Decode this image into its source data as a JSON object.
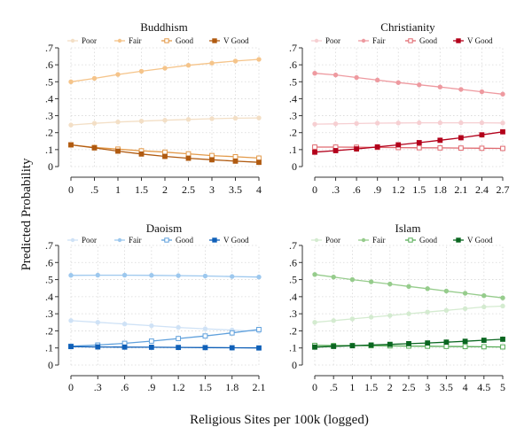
{
  "figure": {
    "ylabel": "Predicted Probability",
    "xlabel": "Religious Sites per 100k (logged)"
  },
  "legend_labels": [
    "Poor",
    "Fair",
    "Good",
    "V Good"
  ],
  "chart_data": [
    {
      "type": "line",
      "title": "Buddhism",
      "ylim": [
        0,
        0.7
      ],
      "yticks": [
        "0",
        ".1",
        ".2",
        ".3",
        ".4",
        ".5",
        ".6",
        ".7"
      ],
      "x": [
        0,
        0.5,
        1,
        1.5,
        2,
        2.5,
        3,
        3.5,
        4
      ],
      "xticks": [
        "0",
        ".5",
        "1",
        "1.5",
        "2",
        "2.5",
        "3",
        "3.5",
        "4"
      ],
      "grid": true,
      "legend": "top",
      "colors": [
        "#f3dfc6",
        "#f5c48a",
        "#e39a4a",
        "#b05a10"
      ],
      "series": [
        {
          "name": "Poor",
          "values": [
            0.245,
            0.255,
            0.263,
            0.268,
            0.273,
            0.278,
            0.282,
            0.285,
            0.287
          ]
        },
        {
          "name": "Fair",
          "values": [
            0.5,
            0.52,
            0.543,
            0.562,
            0.58,
            0.597,
            0.61,
            0.622,
            0.632
          ]
        },
        {
          "name": "Good",
          "values": [
            0.128,
            0.113,
            0.103,
            0.093,
            0.085,
            0.075,
            0.065,
            0.058,
            0.05
          ]
        },
        {
          "name": "V Good",
          "values": [
            0.128,
            0.11,
            0.091,
            0.074,
            0.06,
            0.049,
            0.04,
            0.032,
            0.025
          ]
        }
      ]
    },
    {
      "type": "line",
      "title": "Christianity",
      "ylim": [
        0,
        0.7
      ],
      "yticks": [
        "0",
        ".1",
        ".2",
        ".3",
        ".4",
        ".5",
        ".6",
        ".7"
      ],
      "x": [
        0,
        0.3,
        0.6,
        0.9,
        1.2,
        1.5,
        1.8,
        2.1,
        2.4,
        2.7
      ],
      "xticks": [
        "0",
        ".3",
        ".6",
        ".9",
        "1.2",
        "1.5",
        "1.8",
        "2.1",
        "2.4",
        "2.7"
      ],
      "grid": true,
      "legend": "top",
      "colors": [
        "#f6cfd2",
        "#ee9aa0",
        "#e06a70",
        "#b3001b"
      ],
      "series": [
        {
          "name": "Poor",
          "values": [
            0.25,
            0.252,
            0.254,
            0.256,
            0.257,
            0.258,
            0.258,
            0.258,
            0.258,
            0.257
          ]
        },
        {
          "name": "Fair",
          "values": [
            0.55,
            0.54,
            0.525,
            0.51,
            0.495,
            0.482,
            0.469,
            0.455,
            0.441,
            0.427
          ]
        },
        {
          "name": "Good",
          "values": [
            0.115,
            0.115,
            0.114,
            0.113,
            0.112,
            0.111,
            0.11,
            0.109,
            0.108,
            0.107
          ]
        },
        {
          "name": "V Good",
          "values": [
            0.085,
            0.094,
            0.104,
            0.116,
            0.128,
            0.141,
            0.155,
            0.17,
            0.187,
            0.205
          ]
        }
      ]
    },
    {
      "type": "line",
      "title": "Daoism",
      "ylim": [
        0,
        0.7
      ],
      "yticks": [
        "0",
        ".1",
        ".2",
        ".3",
        ".4",
        ".5",
        ".6",
        ".7"
      ],
      "x": [
        0,
        0.3,
        0.6,
        0.9,
        1.2,
        1.5,
        1.8,
        2.1
      ],
      "xticks": [
        "0",
        ".3",
        ".6",
        ".9",
        "1.2",
        "1.5",
        "1.8",
        "2.1"
      ],
      "grid": true,
      "legend": "top",
      "colors": [
        "#cfe2f6",
        "#9dc8ee",
        "#5fa0dc",
        "#1060b8"
      ],
      "series": [
        {
          "name": "Poor",
          "values": [
            0.26,
            0.25,
            0.24,
            0.23,
            0.22,
            0.212,
            0.205,
            0.197
          ]
        },
        {
          "name": "Fair",
          "values": [
            0.525,
            0.526,
            0.526,
            0.525,
            0.523,
            0.521,
            0.518,
            0.515
          ]
        },
        {
          "name": "Good",
          "values": [
            0.11,
            0.117,
            0.127,
            0.14,
            0.155,
            0.17,
            0.188,
            0.208
          ]
        },
        {
          "name": "V Good",
          "values": [
            0.108,
            0.106,
            0.105,
            0.104,
            0.103,
            0.102,
            0.101,
            0.1
          ]
        }
      ]
    },
    {
      "type": "line",
      "title": "Islam",
      "ylim": [
        0,
        0.7
      ],
      "yticks": [
        "0",
        ".1",
        ".2",
        ".3",
        ".4",
        ".5",
        ".6",
        ".7"
      ],
      "x": [
        0,
        0.5,
        1,
        1.5,
        2,
        2.5,
        3,
        3.5,
        4,
        4.5,
        5
      ],
      "xticks": [
        "0",
        ".5",
        "1",
        "1.5",
        "2",
        "2.5",
        "3",
        "3.5",
        "4",
        "4.5",
        "5"
      ],
      "grid": true,
      "legend": "top",
      "colors": [
        "#d4ebd0",
        "#96cc8c",
        "#58ad58",
        "#0a6620"
      ],
      "series": [
        {
          "name": "Poor",
          "values": [
            0.25,
            0.26,
            0.27,
            0.28,
            0.29,
            0.3,
            0.31,
            0.32,
            0.33,
            0.34,
            0.345
          ]
        },
        {
          "name": "Fair",
          "values": [
            0.53,
            0.515,
            0.5,
            0.487,
            0.474,
            0.46,
            0.447,
            0.433,
            0.42,
            0.406,
            0.393
          ]
        },
        {
          "name": "Good",
          "values": [
            0.115,
            0.114,
            0.114,
            0.113,
            0.112,
            0.111,
            0.11,
            0.109,
            0.108,
            0.107,
            0.106
          ]
        },
        {
          "name": "V Good",
          "values": [
            0.105,
            0.109,
            0.113,
            0.117,
            0.121,
            0.125,
            0.129,
            0.134,
            0.139,
            0.145,
            0.151
          ]
        }
      ]
    }
  ]
}
